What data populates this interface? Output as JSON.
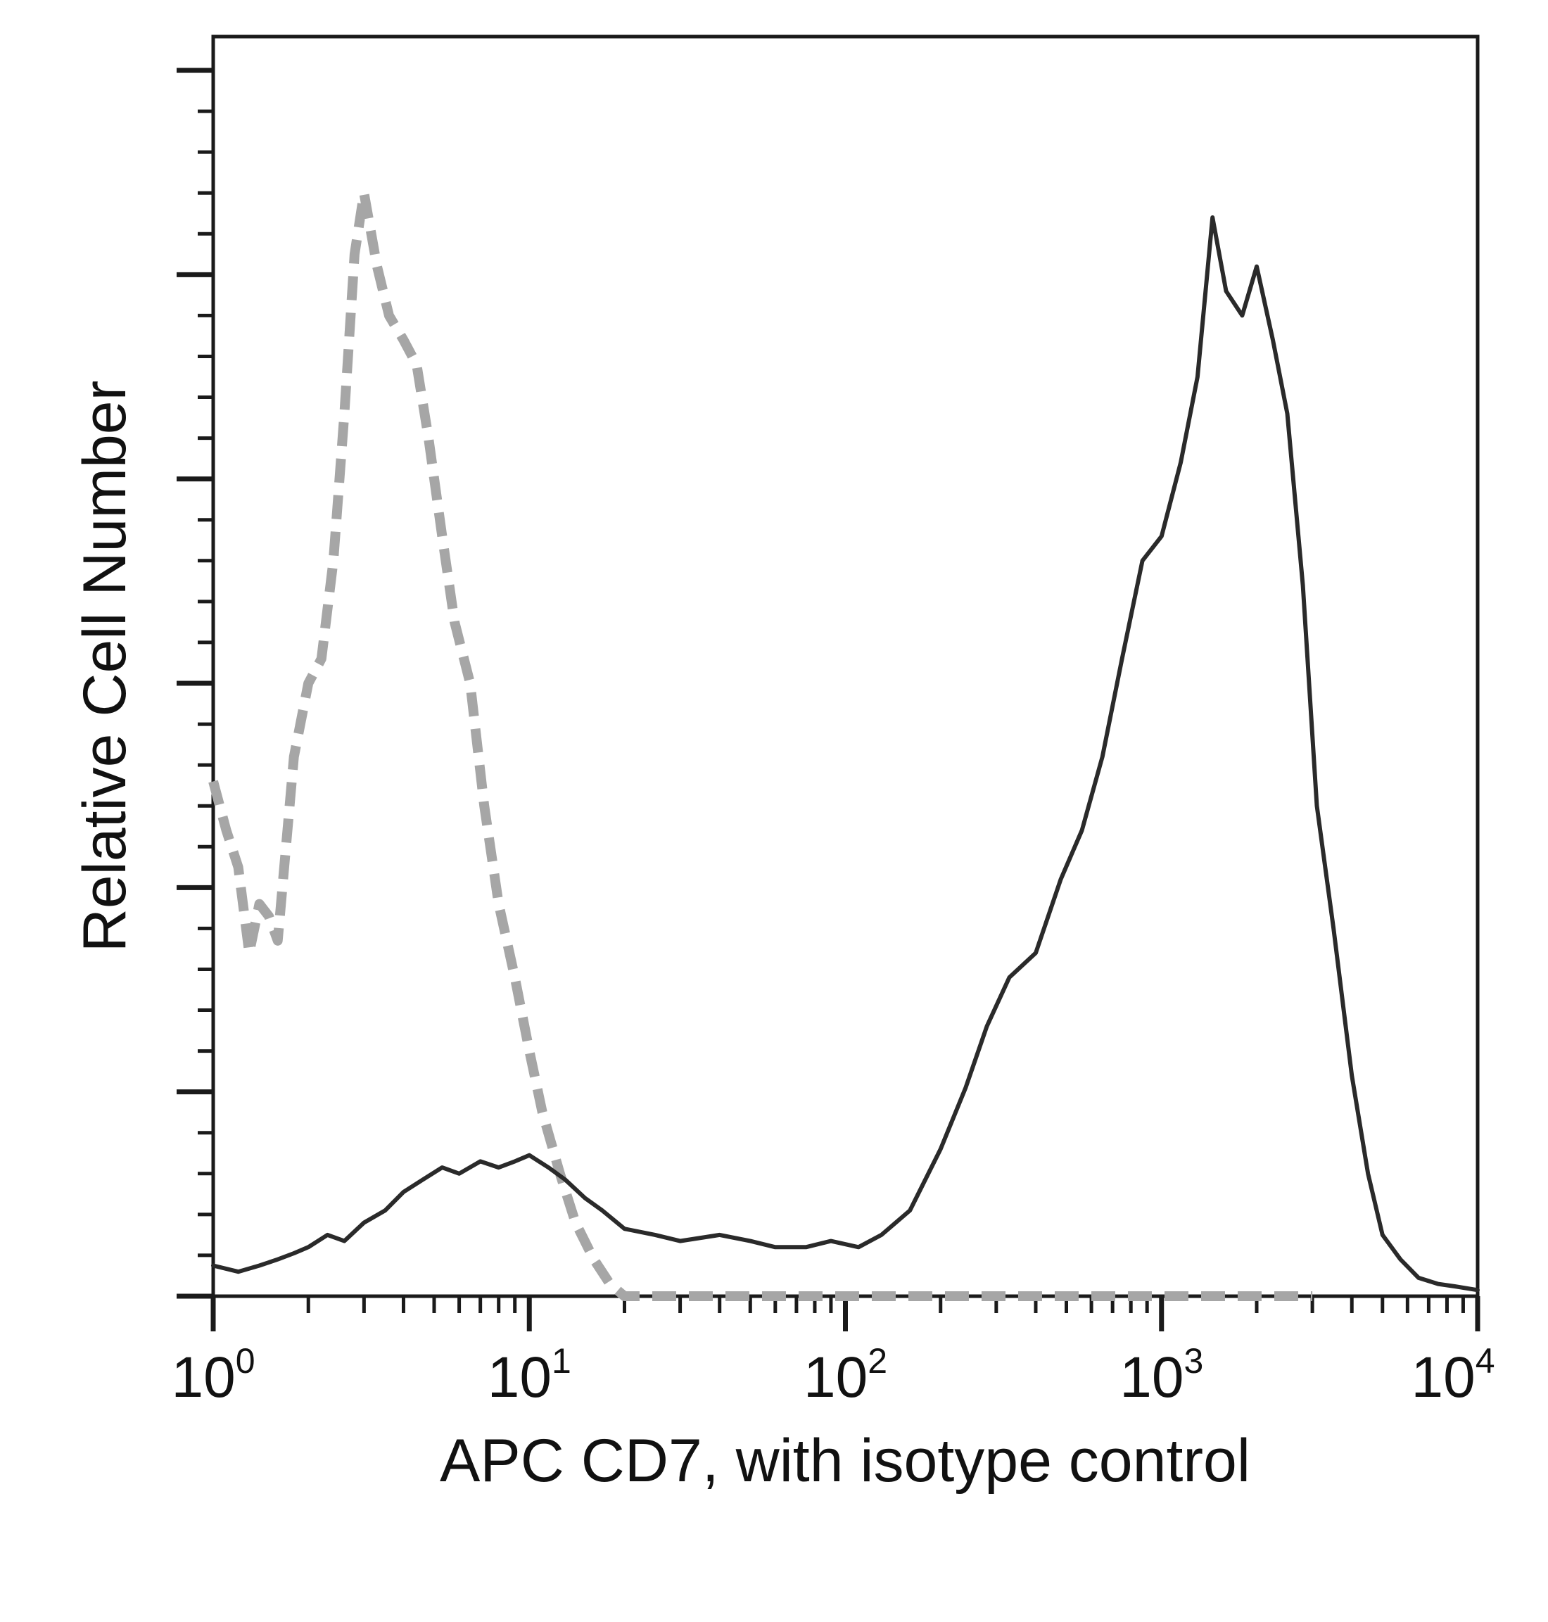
{
  "chart_data": {
    "type": "line",
    "title": "",
    "xlabel": "APC CD7, with isotype control",
    "ylabel": "Relative Cell Number",
    "x_scale": "log",
    "xlim": [
      1,
      10000
    ],
    "ylim": [
      0,
      1
    ],
    "grid": false,
    "legend": "none",
    "y_tick_labels_shown": false,
    "x_ticks": [
      {
        "value": 1,
        "base": "10",
        "exp": "0"
      },
      {
        "value": 10,
        "base": "10",
        "exp": "1"
      },
      {
        "value": 100,
        "base": "10",
        "exp": "2"
      },
      {
        "value": 1000,
        "base": "10",
        "exp": "3"
      },
      {
        "value": 10000,
        "base": "10",
        "exp": "4"
      }
    ],
    "series": [
      {
        "color": "#a6a6a6",
        "style": "dashed",
        "x": [
          1.0,
          1.1,
          1.2,
          1.3,
          1.4,
          1.5,
          1.6,
          1.8,
          2.0,
          2.2,
          2.4,
          2.6,
          2.8,
          3.0,
          3.3,
          3.6,
          4.0,
          4.4,
          4.8,
          5.3,
          5.8,
          6.5,
          7.2,
          8.0,
          9.0,
          10.0,
          11.0,
          12.5,
          14.0,
          16.0,
          18.0,
          20.0,
          30.0,
          100.0,
          1000.0,
          3000.0
        ],
        "y": [
          0.42,
          0.38,
          0.35,
          0.28,
          0.32,
          0.31,
          0.29,
          0.44,
          0.5,
          0.52,
          0.6,
          0.72,
          0.85,
          0.9,
          0.84,
          0.8,
          0.78,
          0.76,
          0.7,
          0.62,
          0.55,
          0.5,
          0.4,
          0.32,
          0.26,
          0.2,
          0.15,
          0.1,
          0.06,
          0.03,
          0.01,
          0.0,
          0.0,
          0.0,
          0.0,
          0.0
        ]
      },
      {
        "color": "#2a2a2a",
        "style": "solid",
        "x": [
          1.0,
          1.2,
          1.4,
          1.6,
          1.8,
          2.0,
          2.3,
          2.6,
          3.0,
          3.5,
          4.0,
          4.6,
          5.3,
          6.0,
          7.0,
          8.0,
          9.0,
          10.0,
          11.5,
          13.0,
          15.0,
          17.0,
          20.0,
          25.0,
          30.0,
          40.0,
          50.0,
          60.0,
          75.0,
          90.0,
          110.0,
          130.0,
          160.0,
          200.0,
          240.0,
          280.0,
          330.0,
          400.0,
          480.0,
          560.0,
          650.0,
          750.0,
          870.0,
          1000.0,
          1150.0,
          1300.0,
          1450.0,
          1600.0,
          1800.0,
          2000.0,
          2250.0,
          2500.0,
          2800.0,
          3100.0,
          3500.0,
          4000.0,
          4500.0,
          5000.0,
          5700.0,
          6500.0,
          7500.0,
          8500.0,
          10000.0
        ],
        "y": [
          0.025,
          0.02,
          0.025,
          0.03,
          0.035,
          0.04,
          0.05,
          0.045,
          0.06,
          0.07,
          0.085,
          0.095,
          0.105,
          0.1,
          0.11,
          0.105,
          0.11,
          0.115,
          0.105,
          0.095,
          0.08,
          0.07,
          0.055,
          0.05,
          0.045,
          0.05,
          0.045,
          0.04,
          0.04,
          0.045,
          0.04,
          0.05,
          0.07,
          0.12,
          0.17,
          0.22,
          0.26,
          0.28,
          0.34,
          0.38,
          0.44,
          0.52,
          0.6,
          0.62,
          0.68,
          0.75,
          0.88,
          0.82,
          0.8,
          0.84,
          0.78,
          0.72,
          0.58,
          0.4,
          0.3,
          0.18,
          0.1,
          0.05,
          0.03,
          0.015,
          0.01,
          0.008,
          0.005
        ]
      }
    ]
  }
}
